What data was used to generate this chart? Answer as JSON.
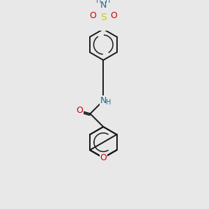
{
  "bg_color": "#e8e8e8",
  "bond_color": "#1a1a1a",
  "colors": {
    "N": "#1a6b8a",
    "O": "#cc0000",
    "S": "#cccc00",
    "C": "#1a1a1a",
    "H": "#1a6b8a"
  },
  "font_size_atom": 9,
  "font_size_h": 8,
  "lw": 1.4
}
